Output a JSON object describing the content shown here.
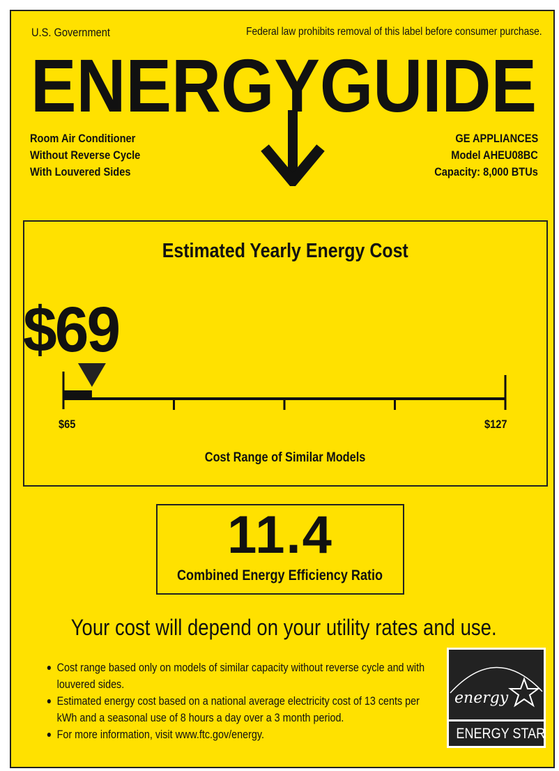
{
  "header": {
    "government": "U.S. Government",
    "notice": "Federal law prohibits removal of this label before consumer purchase.",
    "title": "ENERGYGUIDE"
  },
  "product": {
    "lines": [
      "Room Air Conditioner",
      "Without Reverse Cycle",
      "With Louvered Sides"
    ],
    "brand": "GE APPLIANCES",
    "model": "Model AHEU08BC",
    "capacity": "Capacity: 8,000 BTUs"
  },
  "cost": {
    "heading": "Estimated Yearly Energy Cost",
    "value": "$69",
    "amount": 69,
    "range_min": 65,
    "range_max": 127,
    "min_label": "$65",
    "max_label": "$127",
    "range_caption": "Cost Range of Similar Models"
  },
  "efficiency": {
    "value": "11.4",
    "label": "Combined Energy Efficiency Ratio"
  },
  "disclaimer": "Your cost will depend on your utility rates and use.",
  "notes": [
    "Cost range based only on models of similar capacity without reverse cycle and with louvered sides.",
    "Estimated energy cost based on a national average electricity cost of 13 cents per kWh and a seasonal use of 8 hours a day over a 3 month period.",
    "For more information, visit www.ftc.gov/energy."
  ],
  "logo": {
    "script": "energy",
    "name": "ENERGY STAR"
  },
  "colors": {
    "background": "#FFE100",
    "ink": "#111111"
  }
}
